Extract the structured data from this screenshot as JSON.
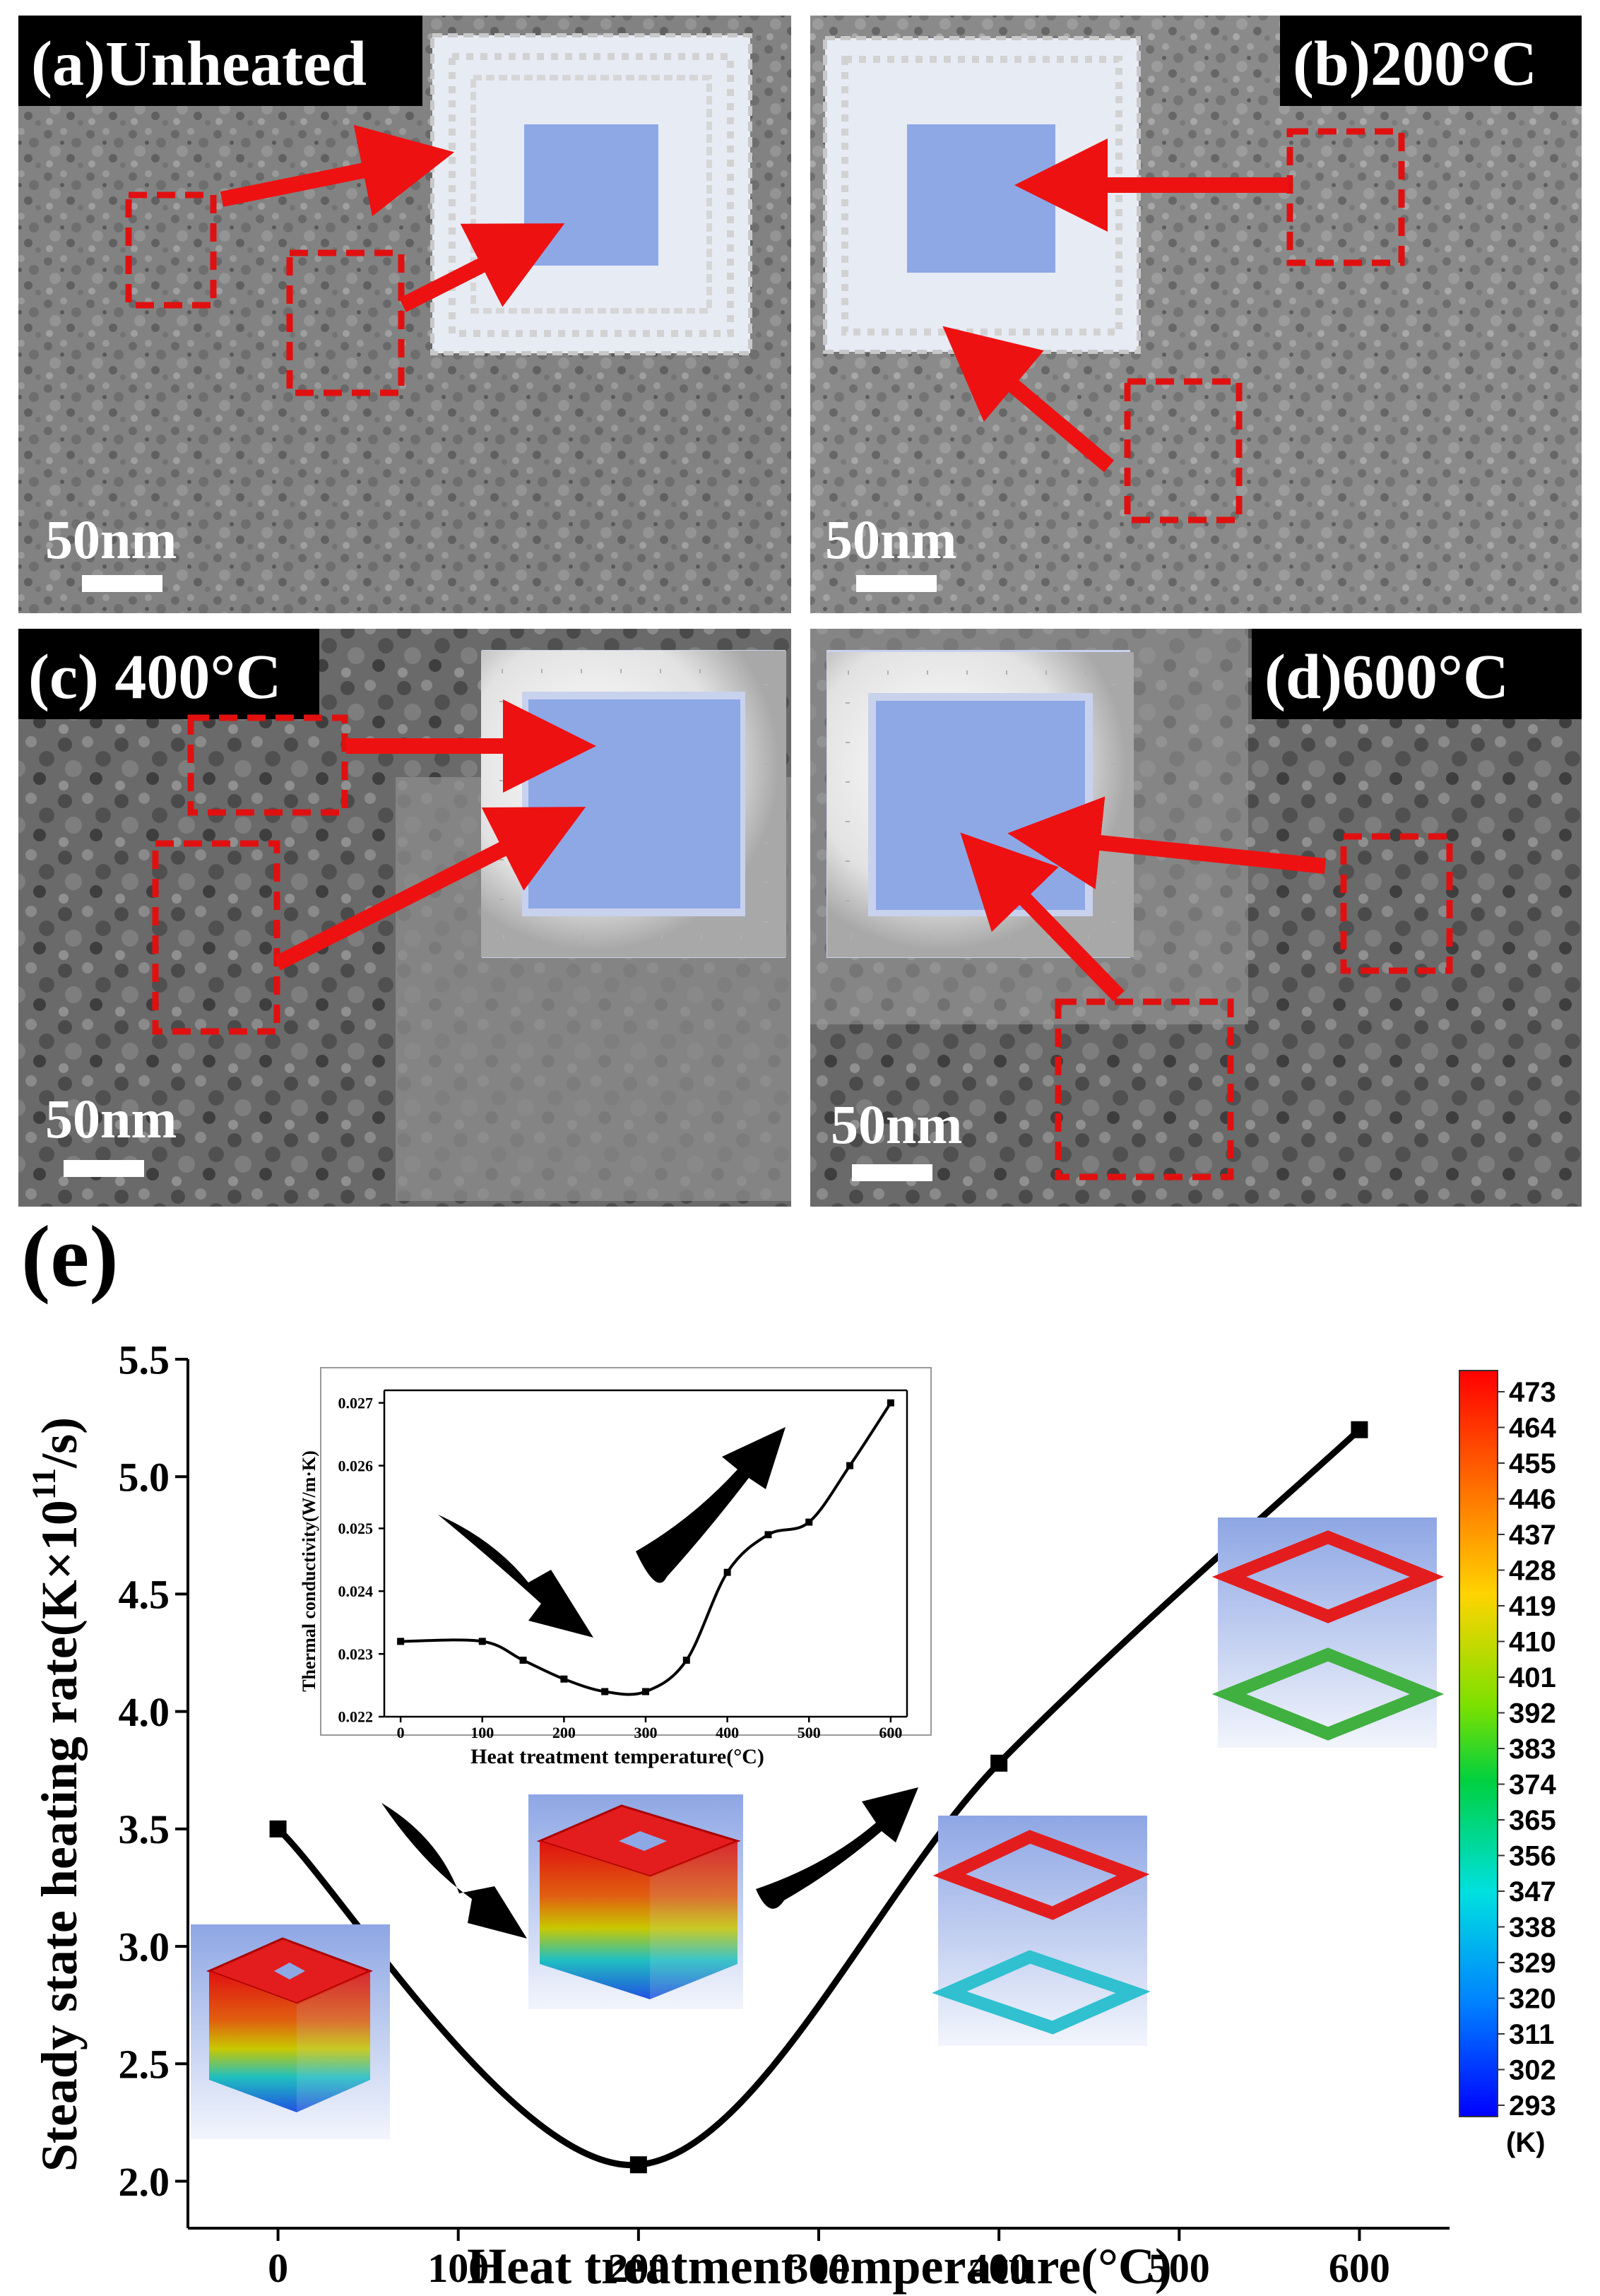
{
  "panels": [
    {
      "id": "a",
      "label": "(a)Unheated",
      "scale": "50nm"
    },
    {
      "id": "b",
      "label": "(b)200°C",
      "scale": "50nm"
    },
    {
      "id": "c",
      "label": "(c) 400°C",
      "scale": "50nm"
    },
    {
      "id": "d",
      "label": "(d)600°C",
      "scale": "50nm"
    }
  ],
  "panel_e_label": "(e)",
  "colors": {
    "arrow_red": "#ee1111",
    "box_red": "#e01010",
    "curve": "#000000",
    "bg_blue": "#8ea8e6"
  },
  "chart_data": [
    {
      "type": "line",
      "x": [
        0,
        200,
        400,
        600
      ],
      "y": [
        3.5,
        2.07,
        3.78,
        5.2
      ],
      "ylabel_main": "Steady state heating rate(K×10",
      "ylabel_sup": "11",
      "ylabel_end": "/s)",
      "xlabel": "Heat treatment temperature(°C)",
      "xlim": [
        -50,
        650
      ],
      "ylim": [
        1.8,
        5.5
      ],
      "x_ticks": [
        "0",
        "100",
        "200",
        "300",
        "400",
        "500",
        "600"
      ],
      "y_ticks": [
        "2.0",
        "2.5",
        "3.0",
        "3.5",
        "4.0",
        "4.5",
        "5.0",
        "5.5"
      ],
      "grid": false
    },
    {
      "type": "line",
      "x": [
        0,
        100,
        150,
        200,
        250,
        300,
        350,
        400,
        450,
        500,
        550,
        600
      ],
      "y": [
        0.0232,
        0.0232,
        0.0229,
        0.0226,
        0.0224,
        0.0224,
        0.0229,
        0.0243,
        0.0249,
        0.0251,
        0.026,
        0.027
      ],
      "ylabel": "Thermal conductivity(W/m·K)",
      "xlabel": "Heat treatment temperature(°C)",
      "xlim": [
        -20,
        620
      ],
      "ylim": [
        0.022,
        0.0272
      ],
      "x_ticks": [
        "0",
        "100",
        "200",
        "300",
        "400",
        "500",
        "600"
      ],
      "y_ticks": [
        "0.022",
        "0.023",
        "0.024",
        "0.025",
        "0.026",
        "0.027"
      ],
      "grid": false
    }
  ],
  "colorbar": {
    "values": [
      "473",
      "464",
      "455",
      "446",
      "437",
      "428",
      "419",
      "410",
      "401",
      "392",
      "383",
      "374",
      "365",
      "356",
      "347",
      "338",
      "329",
      "320",
      "311",
      "302",
      "293"
    ],
    "unit": "(K)"
  }
}
